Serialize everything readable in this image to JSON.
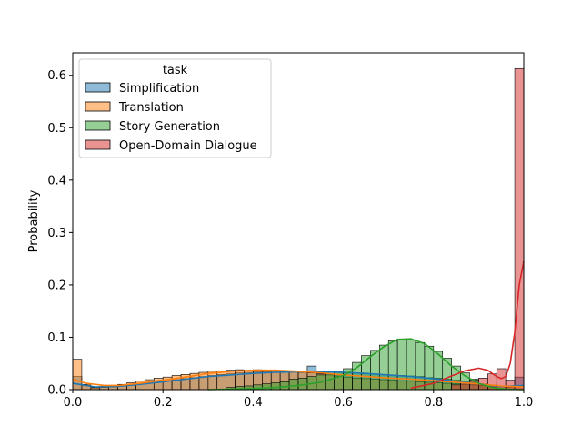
{
  "chart_data": {
    "type": "histogram",
    "title": "",
    "xlabel": "",
    "ylabel": "Probability",
    "xlim": [
      0.0,
      1.0
    ],
    "ylim": [
      0.0,
      0.643
    ],
    "x_ticks": [
      "0.0",
      "0.2",
      "0.4",
      "0.6",
      "0.8",
      "1.0"
    ],
    "y_ticks": [
      "0.0",
      "0.1",
      "0.2",
      "0.3",
      "0.4",
      "0.5",
      "0.6"
    ],
    "bins": 50,
    "bin_width": 0.02,
    "grid": false,
    "legend": {
      "title": "task",
      "placement": "upper-left"
    },
    "series": [
      {
        "name": "Simplification",
        "color": "#1f77b4",
        "values": [
          0.025,
          0.008,
          0.003,
          0.004,
          0.005,
          0.007,
          0.009,
          0.011,
          0.013,
          0.015,
          0.017,
          0.019,
          0.021,
          0.023,
          0.025,
          0.027,
          0.029,
          0.031,
          0.032,
          0.033,
          0.034,
          0.034,
          0.035,
          0.035,
          0.036,
          0.034,
          0.045,
          0.035,
          0.034,
          0.033,
          0.032,
          0.031,
          0.03,
          0.03,
          0.029,
          0.028,
          0.027,
          0.026,
          0.025,
          0.023,
          0.022,
          0.02,
          0.018,
          0.016,
          0.014,
          0.011,
          0.009,
          0.007,
          0.005,
          0.024
        ],
        "kde": [
          [
            0.0,
            0.012
          ],
          [
            0.05,
            0.005
          ],
          [
            0.1,
            0.006
          ],
          [
            0.15,
            0.01
          ],
          [
            0.2,
            0.015
          ],
          [
            0.25,
            0.02
          ],
          [
            0.3,
            0.025
          ],
          [
            0.35,
            0.028
          ],
          [
            0.4,
            0.031
          ],
          [
            0.45,
            0.033
          ],
          [
            0.5,
            0.034
          ],
          [
            0.55,
            0.034
          ],
          [
            0.6,
            0.033
          ],
          [
            0.65,
            0.031
          ],
          [
            0.7,
            0.028
          ],
          [
            0.75,
            0.025
          ],
          [
            0.8,
            0.021
          ],
          [
            0.85,
            0.016
          ],
          [
            0.9,
            0.011
          ],
          [
            0.95,
            0.006
          ],
          [
            1.0,
            0.008
          ]
        ]
      },
      {
        "name": "Translation",
        "color": "#ff7f0e",
        "values": [
          0.058,
          0.01,
          0.004,
          0.006,
          0.008,
          0.01,
          0.013,
          0.016,
          0.019,
          0.022,
          0.024,
          0.027,
          0.029,
          0.031,
          0.033,
          0.035,
          0.036,
          0.037,
          0.038,
          0.037,
          0.038,
          0.037,
          0.036,
          0.035,
          0.034,
          0.033,
          0.032,
          0.03,
          0.028,
          0.026,
          0.024,
          0.022,
          0.021,
          0.02,
          0.019,
          0.018,
          0.017,
          0.016,
          0.015,
          0.014,
          0.013,
          0.012,
          0.011,
          0.01,
          0.009,
          0.008,
          0.007,
          0.006,
          0.005,
          0.005
        ],
        "kde": [
          [
            0.0,
            0.02
          ],
          [
            0.03,
            0.012
          ],
          [
            0.07,
            0.008
          ],
          [
            0.1,
            0.008
          ],
          [
            0.15,
            0.012
          ],
          [
            0.2,
            0.018
          ],
          [
            0.25,
            0.024
          ],
          [
            0.3,
            0.031
          ],
          [
            0.35,
            0.035
          ],
          [
            0.4,
            0.037
          ],
          [
            0.45,
            0.037
          ],
          [
            0.5,
            0.035
          ],
          [
            0.55,
            0.032
          ],
          [
            0.6,
            0.028
          ],
          [
            0.65,
            0.025
          ],
          [
            0.7,
            0.022
          ],
          [
            0.75,
            0.02
          ],
          [
            0.8,
            0.017
          ],
          [
            0.85,
            0.014
          ],
          [
            0.9,
            0.011
          ],
          [
            0.95,
            0.007
          ],
          [
            1.0,
            0.005
          ]
        ]
      },
      {
        "name": "Story Generation",
        "color": "#2ca02c",
        "values": [
          0,
          0,
          0,
          0,
          0,
          0,
          0,
          0,
          0,
          0,
          0,
          0,
          0,
          0,
          0,
          0,
          0,
          0.004,
          0.006,
          0.007,
          0.009,
          0.011,
          0.013,
          0.015,
          0.02,
          0.022,
          0.025,
          0.028,
          0.03,
          0.035,
          0.04,
          0.052,
          0.065,
          0.075,
          0.085,
          0.093,
          0.096,
          0.095,
          0.09,
          0.083,
          0.073,
          0.06,
          0.045,
          0.032,
          0.02,
          0.01,
          0.005,
          0,
          0,
          0
        ],
        "kde": [
          [
            0.3,
            0.0
          ],
          [
            0.4,
            0.002
          ],
          [
            0.45,
            0.004
          ],
          [
            0.5,
            0.008
          ],
          [
            0.55,
            0.014
          ],
          [
            0.6,
            0.027
          ],
          [
            0.63,
            0.042
          ],
          [
            0.66,
            0.063
          ],
          [
            0.69,
            0.082
          ],
          [
            0.72,
            0.096
          ],
          [
            0.75,
            0.097
          ],
          [
            0.78,
            0.088
          ],
          [
            0.81,
            0.068
          ],
          [
            0.84,
            0.045
          ],
          [
            0.87,
            0.026
          ],
          [
            0.9,
            0.012
          ],
          [
            0.93,
            0.004
          ],
          [
            0.96,
            0.001
          ],
          [
            1.0,
            0.0
          ]
        ]
      },
      {
        "name": "Open-Domain Dialogue",
        "color": "#d62728",
        "values": [
          0,
          0,
          0,
          0,
          0,
          0,
          0,
          0,
          0,
          0,
          0,
          0,
          0,
          0,
          0,
          0,
          0,
          0,
          0,
          0,
          0,
          0,
          0,
          0,
          0,
          0,
          0,
          0,
          0,
          0,
          0,
          0,
          0,
          0,
          0,
          0,
          0,
          0,
          0,
          0,
          0,
          0,
          0.009,
          0.013,
          0.018,
          0.022,
          0.03,
          0.04,
          0.018,
          0.613
        ],
        "kde": [
          [
            0.75,
            0.003
          ],
          [
            0.8,
            0.012
          ],
          [
            0.84,
            0.026
          ],
          [
            0.87,
            0.036
          ],
          [
            0.9,
            0.041
          ],
          [
            0.92,
            0.037
          ],
          [
            0.94,
            0.025
          ],
          [
            0.95,
            0.021
          ],
          [
            0.96,
            0.025
          ],
          [
            0.97,
            0.05
          ],
          [
            0.98,
            0.11
          ],
          [
            0.99,
            0.2
          ],
          [
            1.0,
            0.245
          ]
        ]
      }
    ]
  }
}
